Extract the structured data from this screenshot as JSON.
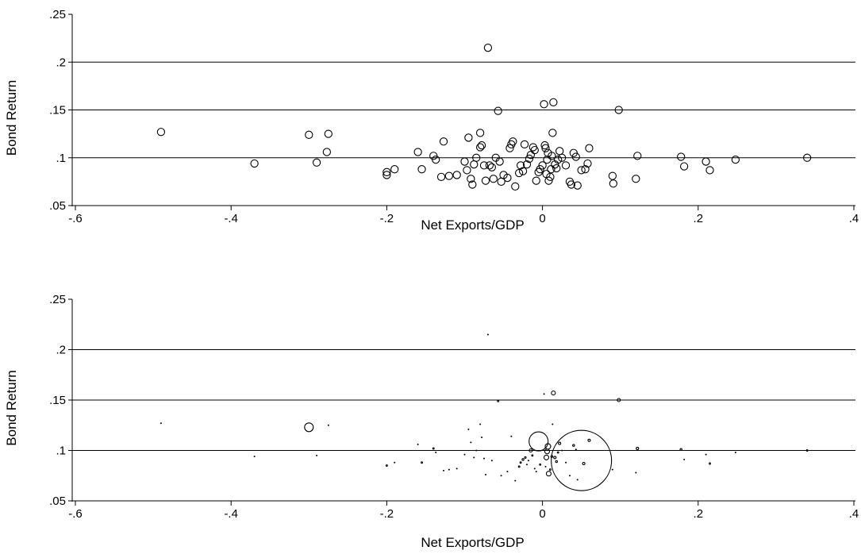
{
  "chart_data": [
    {
      "type": "scatter",
      "xlabel": "Net Exports/GDP",
      "ylabel": "Bond Return",
      "xlim": [
        -0.6,
        0.4
      ],
      "ylim": [
        0.05,
        0.25
      ],
      "xticks": [
        "-.6",
        "-.4",
        "-.2",
        "0",
        ".2",
        ".4"
      ],
      "yticks": [
        ".05",
        ".1",
        ".15",
        ".2",
        ".25"
      ],
      "grid": "horizontal",
      "marker": "hollow-circle-uniform",
      "points": [
        [
          -0.49,
          0.127
        ],
        [
          -0.37,
          0.094
        ],
        [
          -0.3,
          0.124
        ],
        [
          -0.29,
          0.095
        ],
        [
          -0.275,
          0.125
        ],
        [
          -0.277,
          0.106
        ],
        [
          -0.2,
          0.085
        ],
        [
          -0.2,
          0.082
        ],
        [
          -0.19,
          0.088
        ],
        [
          -0.16,
          0.106
        ],
        [
          -0.155,
          0.088
        ],
        [
          -0.14,
          0.102
        ],
        [
          -0.137,
          0.098
        ],
        [
          -0.127,
          0.117
        ],
        [
          -0.13,
          0.08
        ],
        [
          -0.12,
          0.081
        ],
        [
          -0.11,
          0.082
        ],
        [
          -0.1,
          0.096
        ],
        [
          -0.097,
          0.087
        ],
        [
          -0.095,
          0.121
        ],
        [
          -0.092,
          0.078
        ],
        [
          -0.09,
          0.072
        ],
        [
          -0.088,
          0.093
        ],
        [
          -0.085,
          0.1
        ],
        [
          -0.08,
          0.111
        ],
        [
          -0.078,
          0.113
        ],
        [
          -0.08,
          0.126
        ],
        [
          -0.075,
          0.092
        ],
        [
          -0.073,
          0.076
        ],
        [
          -0.07,
          0.215
        ],
        [
          -0.068,
          0.092
        ],
        [
          -0.065,
          0.09
        ],
        [
          -0.063,
          0.078
        ],
        [
          -0.06,
          0.1
        ],
        [
          -0.057,
          0.149
        ],
        [
          -0.055,
          0.096
        ],
        [
          -0.053,
          0.075
        ],
        [
          -0.05,
          0.082
        ],
        [
          -0.045,
          0.079
        ],
        [
          -0.042,
          0.11
        ],
        [
          -0.04,
          0.114
        ],
        [
          -0.038,
          0.117
        ],
        [
          -0.035,
          0.07
        ],
        [
          -0.03,
          0.084
        ],
        [
          -0.028,
          0.092
        ],
        [
          -0.025,
          0.086
        ],
        [
          -0.023,
          0.114
        ],
        [
          -0.02,
          0.093
        ],
        [
          -0.017,
          0.099
        ],
        [
          -0.015,
          0.103
        ],
        [
          -0.012,
          0.111
        ],
        [
          -0.01,
          0.108
        ],
        [
          -0.008,
          0.076
        ],
        [
          -0.005,
          0.085
        ],
        [
          -0.003,
          0.088
        ],
        [
          0.0,
          0.092
        ],
        [
          0.002,
          0.156
        ],
        [
          0.003,
          0.113
        ],
        [
          0.004,
          0.11
        ],
        [
          0.005,
          0.083
        ],
        [
          0.006,
          0.098
        ],
        [
          0.007,
          0.105
        ],
        [
          0.008,
          0.076
        ],
        [
          0.01,
          0.08
        ],
        [
          0.011,
          0.088
        ],
        [
          0.012,
          0.102
        ],
        [
          0.013,
          0.126
        ],
        [
          0.014,
          0.158
        ],
        [
          0.016,
          0.093
        ],
        [
          0.018,
          0.089
        ],
        [
          0.02,
          0.098
        ],
        [
          0.022,
          0.107
        ],
        [
          0.025,
          0.1
        ],
        [
          0.03,
          0.092
        ],
        [
          0.035,
          0.075
        ],
        [
          0.037,
          0.072
        ],
        [
          0.04,
          0.105
        ],
        [
          0.043,
          0.101
        ],
        [
          0.045,
          0.071
        ],
        [
          0.05,
          0.087
        ],
        [
          0.055,
          0.088
        ],
        [
          0.058,
          0.094
        ],
        [
          0.06,
          0.11
        ],
        [
          0.09,
          0.081
        ],
        [
          0.091,
          0.073
        ],
        [
          0.098,
          0.15
        ],
        [
          0.12,
          0.078
        ],
        [
          0.122,
          0.102
        ],
        [
          0.178,
          0.101
        ],
        [
          0.182,
          0.091
        ],
        [
          0.21,
          0.096
        ],
        [
          0.215,
          0.087
        ],
        [
          0.248,
          0.098
        ],
        [
          0.34,
          0.1
        ]
      ]
    },
    {
      "type": "scatter",
      "xlabel": "Net Exports/GDP",
      "ylabel": "Bond Return",
      "xlim": [
        -0.6,
        0.4
      ],
      "ylim": [
        0.05,
        0.25
      ],
      "xticks": [
        "-.6",
        "-.4",
        "-.2",
        "0",
        ".2",
        ".4"
      ],
      "yticks": [
        ".05",
        ".1",
        ".15",
        ".2",
        ".25"
      ],
      "grid": "horizontal",
      "marker": "hollow-circle-weighted",
      "points": [
        [
          -0.49,
          0.127,
          0.3
        ],
        [
          -0.37,
          0.094,
          0.3
        ],
        [
          -0.3,
          0.123,
          5.5
        ],
        [
          -0.29,
          0.095,
          0.3
        ],
        [
          -0.275,
          0.125,
          0.3
        ],
        [
          -0.2,
          0.085,
          0.9
        ],
        [
          -0.19,
          0.088,
          0.4
        ],
        [
          -0.155,
          0.088,
          0.9
        ],
        [
          -0.14,
          0.102,
          0.9
        ],
        [
          -0.137,
          0.098,
          0.3
        ],
        [
          -0.16,
          0.106,
          0.3
        ],
        [
          -0.127,
          0.08,
          0.3
        ],
        [
          -0.12,
          0.081,
          0.3
        ],
        [
          -0.11,
          0.082,
          0.3
        ],
        [
          -0.1,
          0.096,
          0.3
        ],
        [
          -0.095,
          0.121,
          0.3
        ],
        [
          -0.092,
          0.108,
          0.3
        ],
        [
          -0.088,
          0.093,
          0.3
        ],
        [
          -0.085,
          0.1,
          0.3
        ],
        [
          -0.08,
          0.126,
          0.3
        ],
        [
          -0.078,
          0.113,
          0.3
        ],
        [
          -0.075,
          0.092,
          0.3
        ],
        [
          -0.073,
          0.076,
          0.3
        ],
        [
          -0.07,
          0.215,
          0.3
        ],
        [
          -0.065,
          0.09,
          0.3
        ],
        [
          -0.057,
          0.149,
          0.9
        ],
        [
          -0.053,
          0.075,
          0.3
        ],
        [
          -0.045,
          0.079,
          0.3
        ],
        [
          -0.04,
          0.114,
          0.3
        ],
        [
          -0.035,
          0.07,
          0.3
        ],
        [
          -0.03,
          0.084,
          0.9
        ],
        [
          -0.028,
          0.088,
          0.9
        ],
        [
          -0.025,
          0.091,
          1.2
        ],
        [
          -0.022,
          0.093,
          1.0
        ],
        [
          -0.02,
          0.086,
          0.3
        ],
        [
          -0.018,
          0.09,
          0.3
        ],
        [
          -0.015,
          0.1,
          2.0
        ],
        [
          -0.013,
          0.095,
          0.9
        ],
        [
          -0.01,
          0.082,
          0.3
        ],
        [
          -0.008,
          0.079,
          0.3
        ],
        [
          -0.005,
          0.109,
          12.0
        ],
        [
          -0.003,
          0.086,
          0.9
        ],
        [
          0.002,
          0.156,
          0.3
        ],
        [
          0.004,
          0.084,
          0.3
        ],
        [
          0.005,
          0.093,
          3.0
        ],
        [
          0.006,
          0.099,
          3.0
        ],
        [
          0.007,
          0.104,
          3.5
        ],
        [
          0.008,
          0.077,
          3.0
        ],
        [
          0.01,
          0.081,
          0.9
        ],
        [
          0.012,
          0.094,
          1.2
        ],
        [
          0.013,
          0.126,
          0.3
        ],
        [
          0.014,
          0.157,
          2.5
        ],
        [
          0.016,
          0.093,
          1.5
        ],
        [
          0.018,
          0.089,
          1.2
        ],
        [
          0.02,
          0.098,
          0.9
        ],
        [
          0.022,
          0.107,
          1.5
        ],
        [
          0.025,
          0.1,
          0.3
        ],
        [
          0.03,
          0.088,
          0.3
        ],
        [
          0.035,
          0.075,
          0.3
        ],
        [
          0.04,
          0.105,
          1.2
        ],
        [
          0.043,
          0.101,
          0.3
        ],
        [
          0.045,
          0.071,
          0.3
        ],
        [
          0.05,
          0.09,
          38.0
        ],
        [
          0.053,
          0.087,
          1.5
        ],
        [
          0.06,
          0.11,
          1.5
        ],
        [
          0.09,
          0.081,
          0.3
        ],
        [
          0.098,
          0.15,
          2.0
        ],
        [
          0.12,
          0.078,
          0.3
        ],
        [
          0.122,
          0.102,
          1.5
        ],
        [
          0.178,
          0.101,
          1.2
        ],
        [
          0.182,
          0.091,
          0.3
        ],
        [
          0.21,
          0.096,
          0.3
        ],
        [
          0.215,
          0.087,
          0.9
        ],
        [
          0.248,
          0.098,
          0.3
        ],
        [
          0.34,
          0.1,
          0.9
        ]
      ]
    }
  ]
}
